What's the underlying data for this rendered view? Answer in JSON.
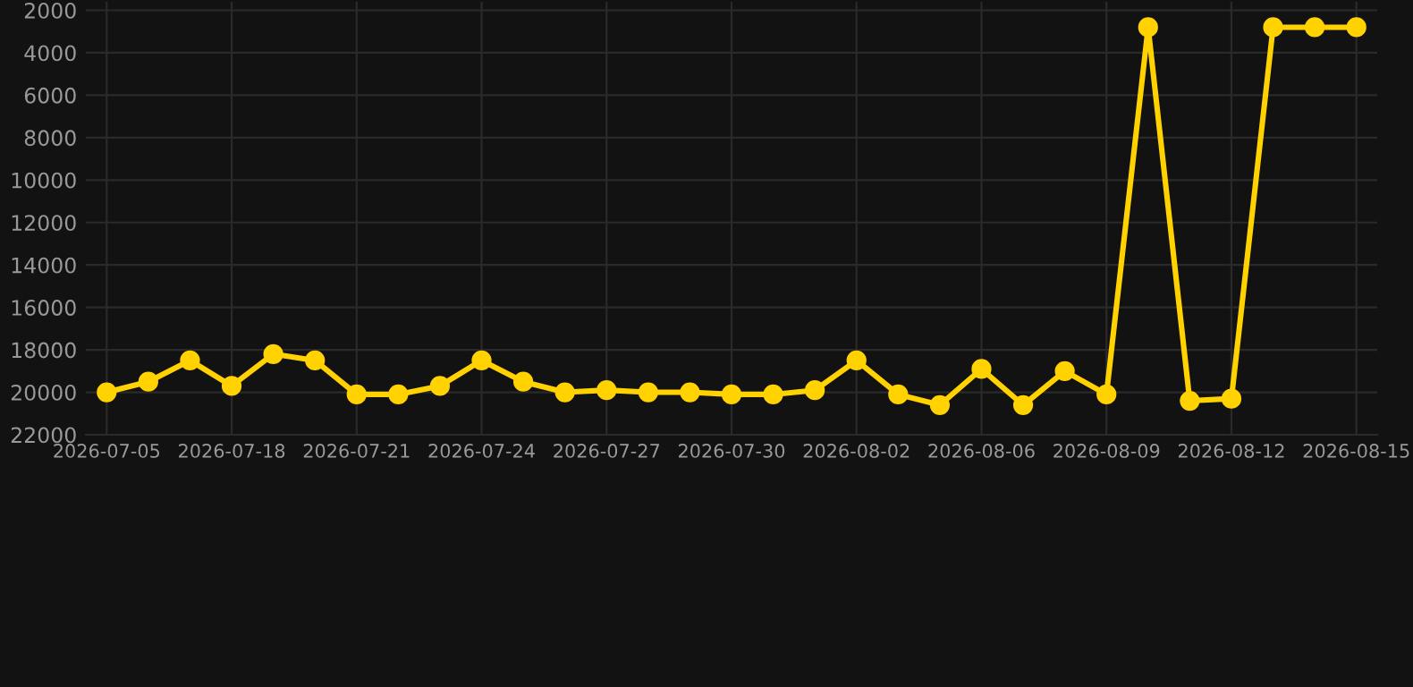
{
  "chart_data": {
    "type": "line",
    "categories": [
      "2026-07-05",
      null,
      null,
      "2026-07-18",
      null,
      null,
      "2026-07-21",
      null,
      null,
      "2026-07-24",
      null,
      null,
      "2026-07-27",
      null,
      null,
      "2026-07-30",
      null,
      null,
      "2026-08-02",
      null,
      null,
      "2026-08-06",
      null,
      null,
      "2026-08-09",
      null,
      null,
      "2026-08-12",
      null,
      null,
      "2026-08-15"
    ],
    "series": [
      {
        "color": "#ffd200",
        "values": [
          20000,
          19500,
          18500,
          19700,
          18200,
          18500,
          20100,
          20100,
          19700,
          18500,
          19500,
          20000,
          19900,
          20000,
          20000,
          20100,
          20100,
          19900,
          18500,
          20100,
          20600,
          18900,
          20600,
          19000,
          20100,
          2800,
          20400,
          20300,
          2800,
          2800,
          2800
        ]
      }
    ],
    "ylim": [
      22000,
      1600
    ],
    "yticks": [
      2000,
      4000,
      6000,
      8000,
      10000,
      12000,
      14000,
      16000,
      18000,
      20000,
      22000
    ],
    "grid": true,
    "marker": "circle",
    "line_style": "solid"
  }
}
